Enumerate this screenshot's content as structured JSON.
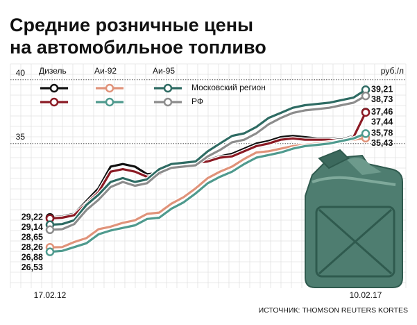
{
  "chart_data": {
    "type": "line",
    "title": [
      "Средние розничные цены",
      "на автомобильное топливо"
    ],
    "unit": "руб./л",
    "source": "ИСТОЧНИК: THOMSON REUTERS KORTES",
    "legend": {
      "columns": [
        "Дизель",
        "Аи-92",
        "Аи-95"
      ],
      "rows": [
        "Московский регион",
        "РФ"
      ]
    },
    "categories": [
      "17.02.12",
      null,
      null,
      null,
      null,
      null,
      null,
      null,
      null,
      null,
      null,
      null,
      null,
      null,
      null,
      null,
      null,
      null,
      null,
      null,
      null,
      null,
      null,
      null,
      null,
      null,
      "10.02.17"
    ],
    "ylim": [
      24.5,
      40.8
    ],
    "yticks": [
      35,
      40
    ],
    "grid": true,
    "series": [
      {
        "color": "#111111",
        "values": [
          29.22,
          29.3,
          29.5,
          30.5,
          31.5,
          33.2,
          33.4,
          33.2,
          32.6,
          32.7,
          33.2,
          33.5,
          33.6,
          33.7,
          34.0,
          34.2,
          34.6,
          35.0,
          35.2,
          35.5,
          35.6,
          35.5,
          35.4,
          35.4,
          35.3,
          35.6,
          37.46
        ],
        "value_labels": [
          "29,22",
          null,
          null,
          null,
          null,
          null,
          null,
          null,
          null,
          null,
          null,
          null,
          null,
          null,
          null,
          null,
          null,
          null,
          null,
          null,
          null,
          null,
          null,
          null,
          null,
          null,
          "37,46"
        ]
      },
      {
        "color": "#8b1a24",
        "values": [
          29.14,
          29.2,
          29.4,
          30.3,
          31.2,
          32.8,
          33.0,
          32.8,
          32.4,
          32.6,
          33.1,
          33.4,
          33.5,
          33.6,
          33.9,
          34.0,
          34.4,
          34.8,
          35.0,
          35.3,
          35.4,
          35.3,
          35.3,
          35.3,
          35.2,
          35.5,
          37.44
        ],
        "value_labels": [
          "29,14",
          null,
          null,
          null,
          null,
          null,
          null,
          null,
          null,
          null,
          null,
          null,
          null,
          null,
          null,
          null,
          null,
          null,
          null,
          null,
          null,
          null,
          null,
          null,
          null,
          null,
          "37,44"
        ]
      },
      {
        "color": "#e0937a",
        "values": [
          26.88,
          26.9,
          27.3,
          27.6,
          28.3,
          28.5,
          28.8,
          29.0,
          29.5,
          29.6,
          30.3,
          30.8,
          31.5,
          32.3,
          32.8,
          33.2,
          33.8,
          34.3,
          34.4,
          34.6,
          34.8,
          34.9,
          35.0,
          35.1,
          35.2,
          35.3,
          35.43
        ],
        "value_labels": [
          "26,88",
          null,
          null,
          null,
          null,
          null,
          null,
          null,
          null,
          null,
          null,
          null,
          null,
          null,
          null,
          null,
          null,
          null,
          null,
          null,
          null,
          null,
          null,
          null,
          null,
          null,
          "35,43"
        ]
      },
      {
        "color": "#4f9a8e",
        "values": [
          26.53,
          26.6,
          26.9,
          27.2,
          27.9,
          28.2,
          28.4,
          28.6,
          29.1,
          29.2,
          29.9,
          30.4,
          31.1,
          31.9,
          32.4,
          32.8,
          33.4,
          33.9,
          34.1,
          34.3,
          34.6,
          34.8,
          34.9,
          35.0,
          35.2,
          35.4,
          35.78
        ],
        "value_labels": [
          "26,53",
          null,
          null,
          null,
          null,
          null,
          null,
          null,
          null,
          null,
          null,
          null,
          null,
          null,
          null,
          null,
          null,
          null,
          null,
          null,
          null,
          null,
          null,
          null,
          null,
          null,
          "35,78"
        ]
      },
      {
        "color": "#2e6b63",
        "values": [
          28.65,
          28.7,
          29.0,
          30.2,
          31.0,
          32.0,
          32.3,
          32.0,
          32.2,
          33.0,
          33.4,
          33.5,
          33.6,
          34.4,
          35.0,
          35.6,
          35.8,
          36.3,
          37.0,
          37.4,
          37.8,
          38.0,
          38.1,
          38.2,
          38.4,
          38.6,
          39.21
        ],
        "value_labels": [
          "28,65",
          null,
          null,
          null,
          null,
          null,
          null,
          null,
          null,
          null,
          null,
          null,
          null,
          null,
          null,
          null,
          null,
          null,
          null,
          null,
          null,
          null,
          null,
          null,
          null,
          null,
          "39,21"
        ]
      },
      {
        "color": "#8c8c8c",
        "values": [
          28.26,
          28.3,
          28.7,
          29.8,
          30.6,
          31.6,
          32.0,
          31.7,
          31.9,
          32.7,
          33.1,
          33.2,
          33.3,
          34.0,
          34.5,
          35.1,
          35.3,
          35.8,
          36.5,
          37.0,
          37.4,
          37.6,
          37.7,
          37.8,
          38.0,
          38.2,
          38.73
        ],
        "value_labels": [
          "28,26",
          null,
          null,
          null,
          null,
          null,
          null,
          null,
          null,
          null,
          null,
          null,
          null,
          null,
          null,
          null,
          null,
          null,
          null,
          null,
          null,
          null,
          null,
          null,
          null,
          null,
          "38,73"
        ]
      }
    ]
  }
}
